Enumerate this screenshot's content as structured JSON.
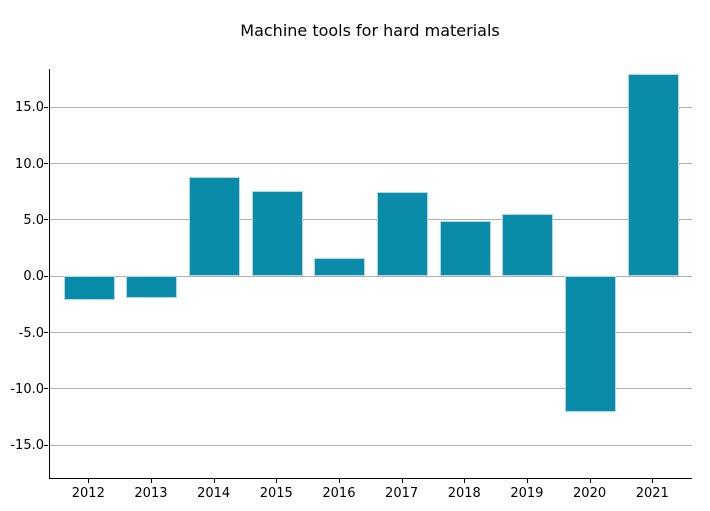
{
  "chart_data": {
    "type": "bar",
    "title": "Machine tools for hard materials",
    "xlabel": "",
    "ylabel": "",
    "categories": [
      "2012",
      "2013",
      "2014",
      "2015",
      "2016",
      "2017",
      "2018",
      "2019",
      "2020",
      "2021"
    ],
    "values": [
      -2.1,
      -1.9,
      8.8,
      7.6,
      1.6,
      7.5,
      4.9,
      5.5,
      -12.0,
      18.0
    ],
    "yticks": [
      15.0,
      10.0,
      5.0,
      0.0,
      -5.0,
      -10.0,
      -15.0
    ],
    "ytick_labels": [
      "15.0",
      "10.0",
      "5.0",
      "0.0",
      "-5.0",
      "-10.0",
      "-15.0"
    ],
    "ylim": [
      -17.9,
      18.4
    ],
    "grid": "horizontal",
    "legend": "none",
    "colors": {
      "bar_fill": "#0b8baa",
      "bar_edge": "#add8e6",
      "gridline": "#b0b0b0",
      "axis": "#000000",
      "text": "#000000",
      "background": "#ffffff"
    }
  }
}
